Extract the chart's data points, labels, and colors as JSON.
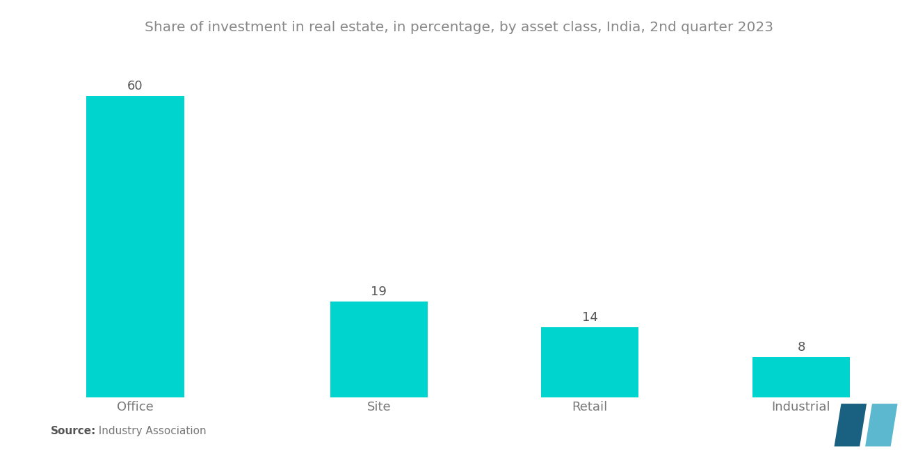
{
  "title": "Share of investment in real estate, in percentage, by asset class, India, 2nd quarter 2023",
  "categories": [
    "Office",
    "Site",
    "Retail",
    "Industrial"
  ],
  "values": [
    60,
    19,
    14,
    8
  ],
  "bar_color": "#00D4CF",
  "background_color": "#ffffff",
  "title_color": "#888888",
  "label_color": "#777777",
  "value_label_color": "#555555",
  "title_fontsize": 14.5,
  "label_fontsize": 13,
  "value_fontsize": 13,
  "source_bold": "Source:",
  "source_detail": "  Industry Association",
  "ylim": [
    0,
    68
  ],
  "bar_width": 0.6,
  "bar_positions": [
    0,
    1.5,
    2.8,
    4.1
  ]
}
